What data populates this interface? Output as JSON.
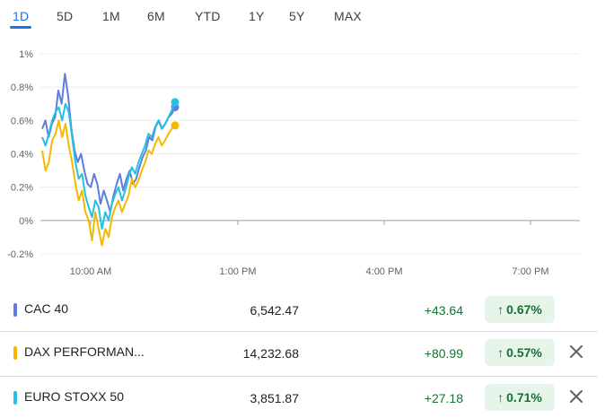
{
  "tabs": [
    "1D",
    "5D",
    "1M",
    "6M",
    "YTD",
    "1Y",
    "5Y",
    "MAX"
  ],
  "active_tab": "1D",
  "chart_data": {
    "type": "line",
    "y_ticks": [
      "1%",
      "0.8%",
      "0.6%",
      "0.4%",
      "0.2%",
      "0%",
      "-0.2%"
    ],
    "x_ticks": [
      "10:00 AM",
      "1:00 PM",
      "4:00 PM",
      "7:00 PM"
    ],
    "ylim": [
      -0.2,
      1.0
    ],
    "grid": true,
    "series": [
      {
        "name": "CAC 40",
        "color": "#5e7ce2",
        "values": [
          0.55,
          0.6,
          0.5,
          0.58,
          0.62,
          0.78,
          0.7,
          0.88,
          0.75,
          0.55,
          0.42,
          0.35,
          0.4,
          0.3,
          0.22,
          0.2,
          0.28,
          0.22,
          0.1,
          0.18,
          0.12,
          0.05,
          0.15,
          0.22,
          0.28,
          0.18,
          0.25,
          0.3,
          0.22,
          0.25,
          0.32,
          0.38,
          0.42,
          0.5,
          0.48,
          0.56,
          0.6,
          0.55,
          0.58,
          0.62,
          0.64,
          0.68
        ]
      },
      {
        "name": "DAX PERFORMAN...",
        "color": "#f5b800",
        "values": [
          0.42,
          0.3,
          0.35,
          0.48,
          0.52,
          0.6,
          0.5,
          0.58,
          0.45,
          0.35,
          0.22,
          0.12,
          0.18,
          0.05,
          0.0,
          -0.12,
          0.05,
          -0.05,
          -0.15,
          -0.05,
          -0.1,
          0.02,
          0.08,
          0.12,
          0.05,
          0.1,
          0.15,
          0.25,
          0.2,
          0.24,
          0.3,
          0.35,
          0.42,
          0.4,
          0.46,
          0.5,
          0.45,
          0.48,
          0.52,
          0.55,
          0.57
        ]
      },
      {
        "name": "EURO STOXX 50",
        "color": "#24c1e0",
        "values": [
          0.5,
          0.45,
          0.52,
          0.6,
          0.65,
          0.68,
          0.6,
          0.7,
          0.65,
          0.5,
          0.35,
          0.25,
          0.28,
          0.15,
          0.08,
          0.02,
          0.12,
          0.08,
          -0.05,
          0.05,
          0.0,
          0.1,
          0.16,
          0.2,
          0.12,
          0.18,
          0.26,
          0.32,
          0.28,
          0.35,
          0.4,
          0.45,
          0.52,
          0.5,
          0.56,
          0.6,
          0.55,
          0.58,
          0.62,
          0.66,
          0.71
        ]
      }
    ]
  },
  "rows": [
    {
      "name": "CAC 40",
      "price": "6,542.47",
      "change": "+43.64",
      "pct": "0.67%",
      "color": "#5e7ce2",
      "removable": false
    },
    {
      "name": "DAX PERFORMAN...",
      "price": "14,232.68",
      "change": "+80.99",
      "pct": "0.57%",
      "color": "#f5b800",
      "removable": true
    },
    {
      "name": "EURO STOXX 50",
      "price": "3,851.87",
      "change": "+27.18",
      "pct": "0.71%",
      "color": "#24c1e0",
      "removable": true
    }
  ]
}
